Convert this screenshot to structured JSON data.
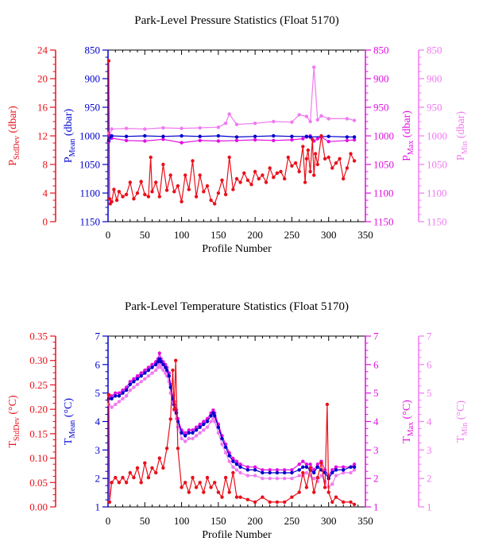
{
  "colors": {
    "stddev": "#e8101a",
    "mean": "#0000cc",
    "max": "#e010e0",
    "min": "#f07af0",
    "frame": "#000000"
  },
  "chart_data": [
    {
      "type": "scatter",
      "title": "Park-Level Pressure Statistics (Float 5170)",
      "xlabel": "Profile Number",
      "xlim": [
        0,
        350
      ],
      "x_ticks": [
        "0",
        "50",
        "100",
        "150",
        "200",
        "250",
        "300",
        "350"
      ],
      "axes": {
        "stddev": {
          "label_main": "P",
          "label_sub": "StdDev",
          "label_unit": " (dbar)",
          "lim": [
            0,
            24
          ],
          "inverted": false,
          "ticks": [
            "0",
            "4",
            "8",
            "12",
            "16",
            "20",
            "24"
          ]
        },
        "mean": {
          "label_main": "P",
          "label_sub": "Mean",
          "label_unit": " (dbar)",
          "lim": [
            850,
            1150
          ],
          "inverted": true,
          "ticks": [
            "850",
            "900",
            "950",
            "1000",
            "1050",
            "1100",
            "1150"
          ]
        },
        "max": {
          "label_main": "P",
          "label_sub": "Max",
          "label_unit": " (dbar)",
          "lim": [
            850,
            1150
          ],
          "inverted": true,
          "ticks": [
            "850",
            "900",
            "950",
            "1000",
            "1050",
            "1100",
            "1150"
          ]
        },
        "min": {
          "label_main": "P",
          "label_sub": "Min",
          "label_unit": " (dbar)",
          "lim": [
            850,
            1150
          ],
          "inverted": true,
          "ticks": [
            "850",
            "900",
            "950",
            "1000",
            "1050",
            "1100",
            "1150"
          ]
        }
      },
      "series": [
        {
          "axis": "stddev",
          "x": [
            1,
            2,
            3,
            5,
            8,
            12,
            15,
            20,
            25,
            30,
            35,
            40,
            45,
            50,
            55,
            58,
            60,
            65,
            70,
            75,
            80,
            85,
            90,
            95,
            100,
            105,
            110,
            115,
            120,
            125,
            130,
            135,
            140,
            145,
            150,
            155,
            160,
            165,
            170,
            175,
            180,
            185,
            190,
            195,
            200,
            205,
            210,
            215,
            220,
            225,
            230,
            235,
            240,
            245,
            250,
            255,
            260,
            265,
            268,
            270,
            272,
            275,
            278,
            280,
            282,
            285,
            290,
            295,
            300,
            305,
            310,
            315,
            320,
            325,
            330,
            335
          ],
          "values": [
            22.5,
            3.2,
            2.5,
            2.8,
            4.5,
            3.0,
            4.2,
            3.5,
            3.8,
            5.5,
            3.2,
            4.0,
            5.6,
            3.8,
            3.5,
            9.0,
            4.2,
            5.5,
            3.5,
            8.0,
            4.4,
            6.5,
            4.2,
            5.0,
            2.8,
            6.5,
            4.5,
            8.5,
            3.5,
            6.5,
            4.2,
            5.0,
            3.0,
            2.5,
            4.0,
            5.8,
            3.8,
            9.0,
            4.5,
            6.0,
            5.5,
            6.8,
            5.8,
            5.2,
            7.0,
            6.0,
            6.5,
            5.5,
            7.5,
            6.2,
            6.8,
            7.0,
            6.0,
            9.0,
            7.8,
            8.2,
            7.0,
            10.5,
            5.5,
            8.8,
            10.0,
            7.0,
            11.5,
            6.5,
            9.5,
            8.0,
            12.0,
            8.8,
            9.0,
            7.5,
            8.2,
            8.8,
            6.0,
            7.5,
            9.5,
            8.5
          ]
        },
        {
          "axis": "mean",
          "x": [
            1,
            2,
            5,
            25,
            50,
            75,
            100,
            125,
            150,
            175,
            200,
            225,
            250,
            270,
            275,
            300,
            325,
            335
          ],
          "values": [
            1008,
            1003,
            1000,
            1001,
            1000,
            1001,
            1000,
            1001,
            1000,
            1002,
            1001,
            1000,
            1001,
            1001,
            1002,
            1001,
            1002,
            1002
          ]
        },
        {
          "axis": "max",
          "x": [
            1,
            2,
            5,
            25,
            50,
            75,
            100,
            125,
            150,
            175,
            200,
            225,
            250,
            265,
            270,
            275,
            280,
            285,
            290,
            300,
            325,
            335
          ],
          "values": [
            1010,
            1000,
            1004,
            1008,
            1009,
            1006,
            1012,
            1008,
            1009,
            1008,
            1007,
            1008,
            1007,
            1005,
            1002,
            1000,
            1009,
            1005,
            1002,
            1010,
            1008,
            1007
          ]
        },
        {
          "axis": "min",
          "x": [
            1,
            2,
            5,
            25,
            50,
            75,
            100,
            125,
            150,
            160,
            165,
            175,
            200,
            225,
            250,
            260,
            270,
            275,
            280,
            285,
            290,
            300,
            325,
            335
          ],
          "values": [
            995,
            1000,
            988,
            987,
            988,
            986,
            987,
            986,
            985,
            978,
            962,
            980,
            978,
            975,
            976,
            963,
            966,
            975,
            880,
            972,
            965,
            970,
            970,
            973
          ]
        }
      ]
    },
    {
      "type": "scatter",
      "title": "Park-Level Temperature Statistics (Float 5170)",
      "xlabel": "Profile Number",
      "xlim": [
        0,
        350
      ],
      "x_ticks": [
        "0",
        "50",
        "100",
        "150",
        "200",
        "250",
        "300",
        "350"
      ],
      "axes": {
        "stddev": {
          "label_main": "T",
          "label_sub": "StdDev",
          "label_unit": " (°C)",
          "lim": [
            0,
            0.35
          ],
          "inverted": false,
          "ticks": [
            "0.00",
            "0.05",
            "0.10",
            "0.15",
            "0.20",
            "0.25",
            "0.30",
            "0.35"
          ]
        },
        "mean": {
          "label_main": "T",
          "label_sub": "Mean",
          "label_unit": " (°C)",
          "lim": [
            1,
            7
          ],
          "inverted": false,
          "ticks": [
            "1",
            "2",
            "3",
            "4",
            "5",
            "6",
            "7"
          ]
        },
        "max": {
          "label_main": "T",
          "label_sub": "Max",
          "label_unit": " (°C)",
          "lim": [
            1,
            7
          ],
          "inverted": false,
          "ticks": [
            "1",
            "2",
            "3",
            "4",
            "5",
            "6",
            "7"
          ]
        },
        "min": {
          "label_main": "T",
          "label_sub": "Min",
          "label_unit": " (°C)",
          "lim": [
            1,
            7
          ],
          "inverted": false,
          "ticks": [
            "1",
            "2",
            "3",
            "4",
            "5",
            "6",
            "7"
          ]
        }
      },
      "series": [
        {
          "axis": "stddev",
          "x": [
            1,
            2,
            5,
            10,
            15,
            20,
            25,
            30,
            35,
            40,
            45,
            50,
            55,
            60,
            65,
            70,
            75,
            80,
            85,
            88,
            90,
            92,
            95,
            100,
            105,
            110,
            115,
            120,
            125,
            130,
            135,
            140,
            145,
            150,
            155,
            160,
            165,
            170,
            175,
            180,
            190,
            200,
            210,
            220,
            230,
            240,
            250,
            260,
            265,
            270,
            275,
            280,
            285,
            290,
            295,
            298,
            300,
            305,
            310,
            320,
            330,
            335
          ],
          "values": [
            0.23,
            0.01,
            0.05,
            0.06,
            0.05,
            0.06,
            0.05,
            0.07,
            0.06,
            0.08,
            0.05,
            0.09,
            0.06,
            0.08,
            0.07,
            0.1,
            0.08,
            0.12,
            0.18,
            0.28,
            0.2,
            0.3,
            0.12,
            0.04,
            0.05,
            0.03,
            0.06,
            0.04,
            0.05,
            0.03,
            0.06,
            0.04,
            0.05,
            0.03,
            0.02,
            0.06,
            0.03,
            0.07,
            0.02,
            0.02,
            0.015,
            0.01,
            0.02,
            0.01,
            0.01,
            0.01,
            0.02,
            0.03,
            0.07,
            0.04,
            0.08,
            0.03,
            0.06,
            0.09,
            0.04,
            0.21,
            0.03,
            0.01,
            0.02,
            0.01,
            0.01,
            0.005
          ]
        },
        {
          "axis": "mean",
          "x": [
            1,
            5,
            10,
            15,
            20,
            25,
            30,
            35,
            40,
            45,
            50,
            55,
            60,
            65,
            68,
            70,
            72,
            75,
            78,
            80,
            83,
            85,
            88,
            90,
            93,
            95,
            100,
            105,
            110,
            115,
            120,
            125,
            130,
            135,
            140,
            143,
            145,
            150,
            155,
            160,
            165,
            170,
            175,
            180,
            190,
            200,
            210,
            220,
            230,
            240,
            250,
            260,
            265,
            270,
            275,
            280,
            285,
            290,
            295,
            300,
            305,
            310,
            320,
            330,
            335
          ],
          "values": [
            4.8,
            4.8,
            4.9,
            4.9,
            5.0,
            5.1,
            5.3,
            5.4,
            5.5,
            5.6,
            5.7,
            5.8,
            5.9,
            6.0,
            6.1,
            6.2,
            6.1,
            6.0,
            5.9,
            5.8,
            5.6,
            5.2,
            4.8,
            4.6,
            4.3,
            4.0,
            3.6,
            3.5,
            3.6,
            3.6,
            3.7,
            3.8,
            3.9,
            4.0,
            4.2,
            4.3,
            4.2,
            3.8,
            3.4,
            3.1,
            2.8,
            2.6,
            2.5,
            2.4,
            2.3,
            2.3,
            2.2,
            2.2,
            2.2,
            2.2,
            2.2,
            2.3,
            2.4,
            2.4,
            2.3,
            2.2,
            2.4,
            2.3,
            2.2,
            2.0,
            2.2,
            2.3,
            2.3,
            2.4,
            2.4
          ]
        },
        {
          "axis": "max",
          "x": [
            1,
            5,
            10,
            15,
            20,
            25,
            30,
            35,
            40,
            45,
            50,
            55,
            60,
            65,
            68,
            70,
            72,
            75,
            78,
            80,
            83,
            85,
            88,
            90,
            93,
            95,
            100,
            105,
            110,
            115,
            120,
            125,
            130,
            135,
            140,
            143,
            145,
            150,
            155,
            160,
            165,
            170,
            175,
            180,
            190,
            200,
            210,
            220,
            230,
            240,
            250,
            260,
            265,
            270,
            275,
            280,
            285,
            290,
            295,
            300,
            305,
            310,
            320,
            330,
            335
          ],
          "values": [
            4.9,
            4.9,
            5.0,
            5.0,
            5.1,
            5.2,
            5.4,
            5.5,
            5.6,
            5.7,
            5.8,
            5.9,
            6.0,
            6.1,
            6.2,
            6.4,
            6.2,
            6.1,
            6.0,
            5.9,
            5.7,
            5.3,
            4.9,
            4.7,
            4.4,
            4.1,
            3.7,
            3.6,
            3.7,
            3.7,
            3.8,
            3.9,
            4.0,
            4.1,
            4.3,
            4.4,
            4.3,
            3.9,
            3.5,
            3.2,
            2.9,
            2.7,
            2.6,
            2.5,
            2.4,
            2.4,
            2.3,
            2.3,
            2.3,
            2.3,
            2.3,
            2.5,
            2.6,
            2.5,
            2.5,
            2.3,
            2.5,
            2.6,
            2.3,
            2.1,
            2.3,
            2.4,
            2.4,
            2.4,
            2.5
          ]
        },
        {
          "axis": "min",
          "x": [
            1,
            5,
            10,
            15,
            20,
            25,
            30,
            35,
            40,
            45,
            50,
            55,
            60,
            65,
            68,
            70,
            72,
            75,
            78,
            80,
            83,
            85,
            88,
            90,
            93,
            95,
            100,
            105,
            110,
            115,
            120,
            125,
            130,
            135,
            140,
            143,
            145,
            150,
            155,
            160,
            165,
            170,
            175,
            180,
            190,
            200,
            210,
            220,
            230,
            240,
            250,
            260,
            265,
            270,
            275,
            280,
            285,
            290,
            295,
            300,
            305,
            310,
            320,
            330,
            335
          ],
          "values": [
            4.6,
            4.5,
            4.6,
            4.7,
            4.8,
            4.9,
            5.1,
            5.2,
            5.3,
            5.4,
            5.5,
            5.6,
            5.7,
            5.8,
            5.9,
            6.0,
            5.9,
            5.8,
            5.7,
            5.6,
            5.4,
            5.0,
            4.6,
            4.4,
            4.1,
            3.8,
            3.4,
            3.3,
            3.4,
            3.4,
            3.5,
            3.6,
            3.7,
            3.8,
            4.0,
            4.1,
            4.0,
            3.6,
            3.2,
            2.9,
            2.6,
            2.4,
            2.3,
            2.2,
            2.1,
            2.1,
            2.0,
            2.0,
            2.0,
            2.0,
            2.0,
            2.1,
            2.1,
            2.2,
            2.1,
            2.0,
            1.9,
            2.1,
            1.9,
            1.7,
            1.8,
            2.1,
            2.2,
            2.2,
            2.3
          ]
        }
      ]
    }
  ]
}
